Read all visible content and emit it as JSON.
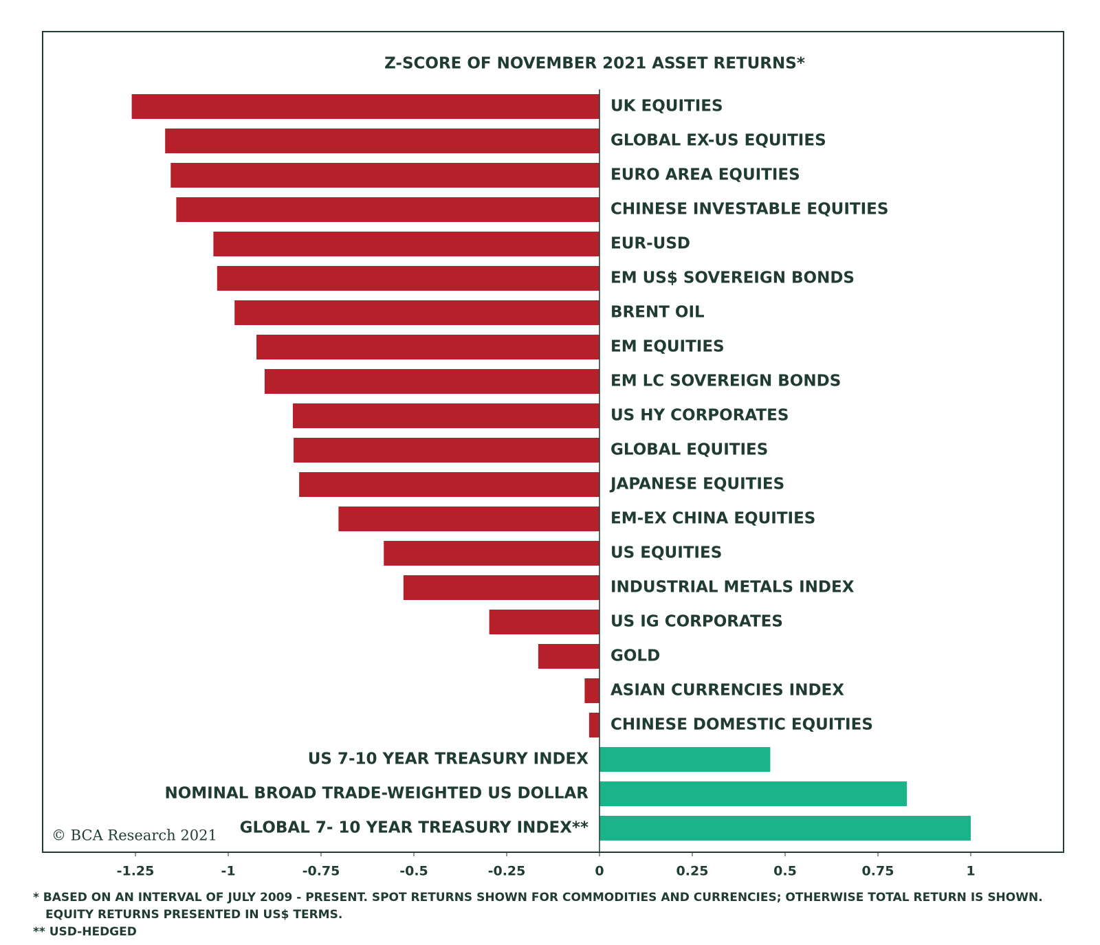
{
  "chart_data": {
    "type": "hbar",
    "title": "Z-SCORE OF NOVEMBER 2021 ASSET RETURNS*",
    "categories": [
      "UK EQUITIES",
      "GLOBAL EX-US EQUITIES",
      "EURO AREA EQUITIES",
      "CHINESE INVESTABLE EQUITIES",
      "EUR-USD",
      "EM US$ SOVEREIGN BONDS",
      "BRENT OIL",
      "EM EQUITIES",
      "EM LC SOVEREIGN BONDS",
      "US HY CORPORATES",
      "GLOBAL EQUITIES",
      "JAPANESE EQUITIES",
      "EM-EX CHINA EQUITIES",
      "US EQUITIES",
      "INDUSTRIAL METALS INDEX",
      "US IG CORPORATES",
      "GOLD",
      "ASIAN CURRENCIES INDEX",
      "CHINESE DOMESTIC EQUITIES",
      "US 7-10 YEAR TREASURY INDEX",
      "NOMINAL BROAD TRADE-WEIGHTED US DOLLAR",
      "GLOBAL 7- 10 YEAR TREASURY INDEX**"
    ],
    "values": [
      -1.26,
      -1.17,
      -1.155,
      -1.14,
      -1.04,
      -1.03,
      -0.983,
      -0.924,
      -0.902,
      -0.826,
      -0.824,
      -0.809,
      -0.703,
      -0.581,
      -0.528,
      -0.297,
      -0.165,
      -0.04,
      -0.028,
      0.46,
      0.828,
      1.0
    ],
    "negative_color": "#b5202a",
    "positive_color": "#1bb38a",
    "xlim": [
      -1.5,
      1.25
    ],
    "xticks": [
      -1.25,
      -1,
      -0.75,
      -0.5,
      -0.25,
      0,
      0.25,
      0.5,
      0.75,
      1
    ],
    "source": "© BCA Research 2021",
    "footnotes": [
      "*  BASED ON AN INTERVAL OF JULY 2009 - PRESENT. SPOT RETURNS SHOWN FOR COMMODITIES AND CURRENCIES; OTHERWISE TOTAL RETURN IS SHOWN.",
      "EQUITY RETURNS PRESENTED IN US$ TERMS.",
      "** USD-HEDGED"
    ]
  }
}
